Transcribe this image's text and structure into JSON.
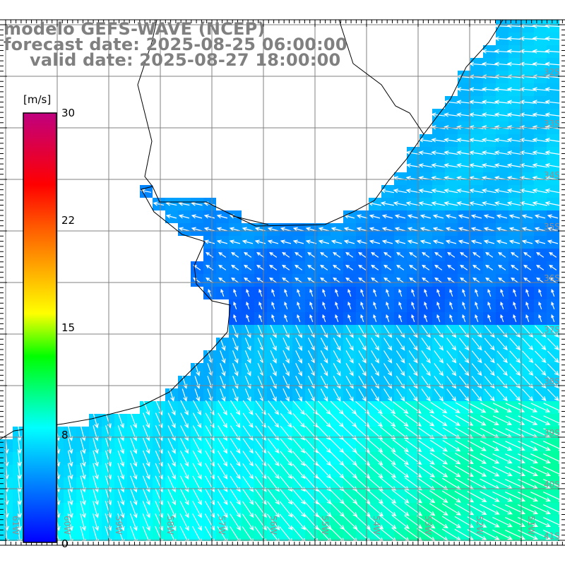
{
  "title": {
    "line1": "modelo GEFS-WAVE (NCEP)",
    "line2": "forecast date: 2025-08-25 06:00:00",
    "line3": "valid date: 2025-08-27 18:00:00"
  },
  "colorbar": {
    "unit": "[m/s]",
    "min": 0,
    "max": 30,
    "ticks": [
      {
        "value": 30,
        "label": "30"
      },
      {
        "value": 22,
        "label": "22"
      },
      {
        "value": 15,
        "label": "15"
      },
      {
        "value": 8,
        "label": "8"
      },
      {
        "value": 0,
        "label": "0"
      }
    ],
    "stops": [
      {
        "value": 0,
        "color": "#0000ff"
      },
      {
        "value": 8,
        "color": "#00ffff"
      },
      {
        "value": 13,
        "color": "#00ff00"
      },
      {
        "value": 16,
        "color": "#ffff00"
      },
      {
        "value": 22,
        "color": "#ff5a00"
      },
      {
        "value": 25,
        "color": "#ff0000"
      },
      {
        "value": 30,
        "color": "#c0007f"
      }
    ]
  },
  "lat_labels": [
    "32S",
    "33S",
    "34S",
    "35S",
    "36S",
    "37S",
    "38S",
    "39S",
    "40S",
    "41S"
  ],
  "lon_labels": [
    "61W",
    "60W",
    "59W",
    "58W",
    "57W",
    "56W",
    "55W",
    "54W",
    "53W",
    "52W",
    "51W"
  ],
  "colors": {
    "title": "#808080",
    "grid": "#808080",
    "coast": "#000000",
    "arrow": "#ffffff",
    "land": "#ffffff"
  }
}
